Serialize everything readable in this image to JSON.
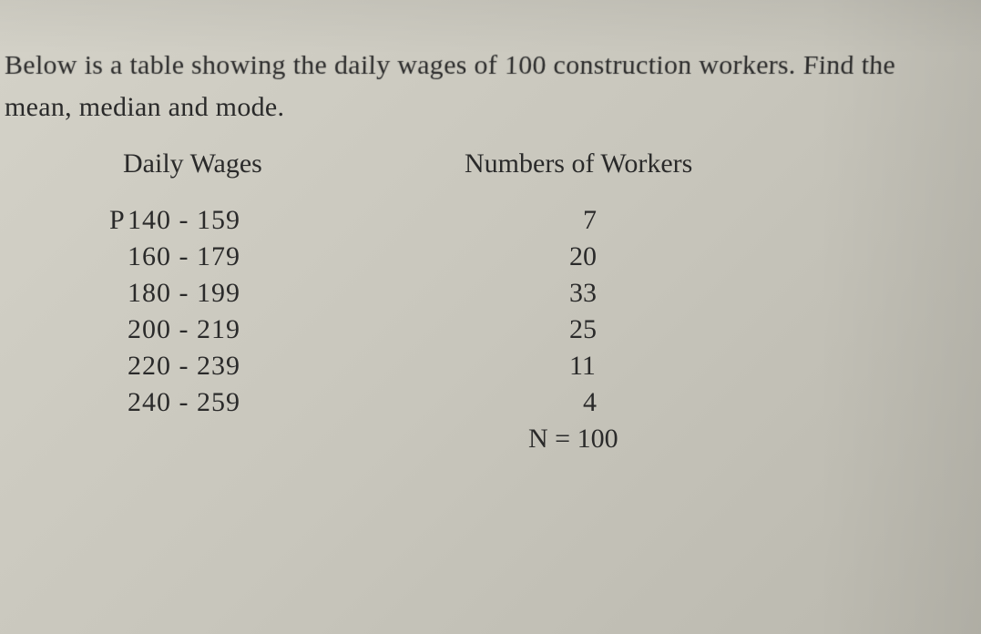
{
  "question": {
    "line1": "Below is a table showing the daily wages of 100 construction workers. Find the",
    "line2": "mean, median and mode."
  },
  "table": {
    "headers": {
      "wages": "Daily Wages",
      "workers": "Numbers of Workers"
    },
    "currency_prefix": "P",
    "rows": [
      {
        "range": "140 - 159",
        "count": "7",
        "single_digit": true,
        "first": true
      },
      {
        "range": "160 - 179",
        "count": "20",
        "single_digit": false,
        "first": false
      },
      {
        "range": "180 - 199",
        "count": "33",
        "single_digit": false,
        "first": false
      },
      {
        "range": "200 - 219",
        "count": "25",
        "single_digit": false,
        "first": false
      },
      {
        "range": "220 - 239",
        "count": "11",
        "single_digit": false,
        "first": false
      },
      {
        "range": "240 - 259",
        "count": "4",
        "single_digit": true,
        "first": false
      }
    ],
    "total": {
      "label": "N =",
      "value": "100"
    }
  },
  "styling": {
    "page_bg_start": "#d4d2c8",
    "page_bg_end": "#bab8ae",
    "text_color": "#2a2a2a",
    "font_family": "Times New Roman",
    "question_fontsize": 30,
    "header_fontsize": 30,
    "data_fontsize": 30
  }
}
